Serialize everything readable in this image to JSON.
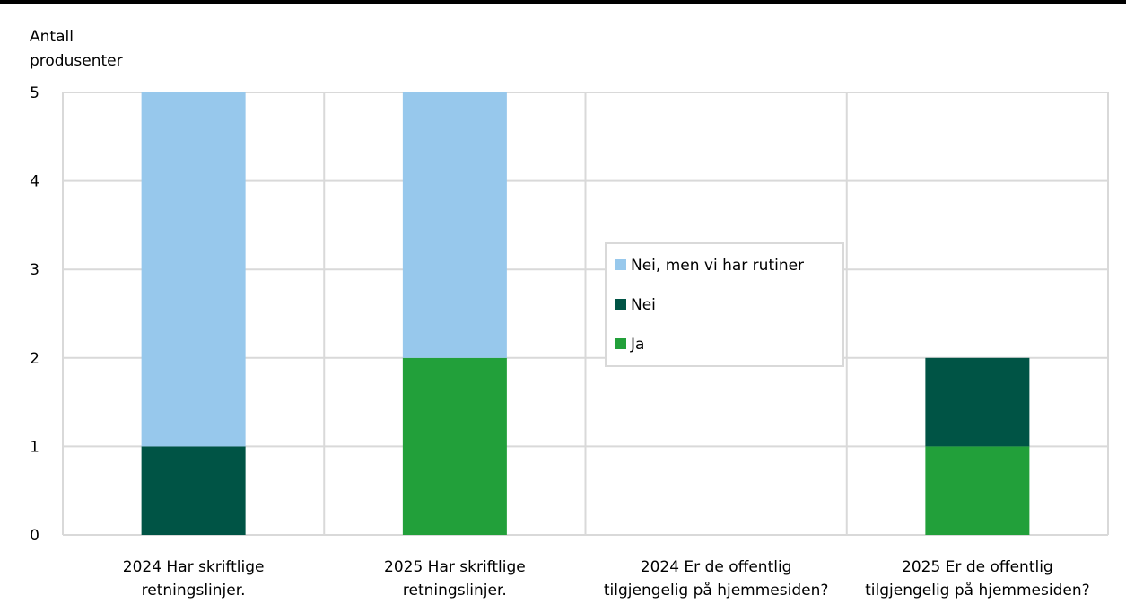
{
  "chart_data": {
    "type": "bar",
    "stacked": true,
    "ylabel_lines": [
      "Antall",
      "produsenter"
    ],
    "ylim": [
      0,
      5
    ],
    "yticks": [
      0,
      1,
      2,
      3,
      4,
      5
    ],
    "grid": true,
    "categories": [
      [
        "2024 Har skriftlige",
        "retningslinjer."
      ],
      [
        "2025 Har skriftlige",
        "retningslinjer."
      ],
      [
        "2024 Er de offentlig",
        "tilgjengelig på hjemmesiden?"
      ],
      [
        "2025 Er de offentlig",
        "tilgjengelig på hjemmesiden?"
      ]
    ],
    "series": [
      {
        "name": "Ja",
        "color": "#22a03a",
        "values": [
          0,
          2,
          0,
          1
        ]
      },
      {
        "name": "Nei",
        "color": "#005445",
        "values": [
          1,
          0,
          0,
          1
        ]
      },
      {
        "name": "Nei, men vi har rutiner",
        "color": "#97c8ec",
        "values": [
          4,
          3,
          0,
          0
        ]
      }
    ],
    "legend_order": [
      "Nei, men vi har rutiner",
      "Nei",
      "Ja"
    ],
    "legend_position": "center"
  }
}
